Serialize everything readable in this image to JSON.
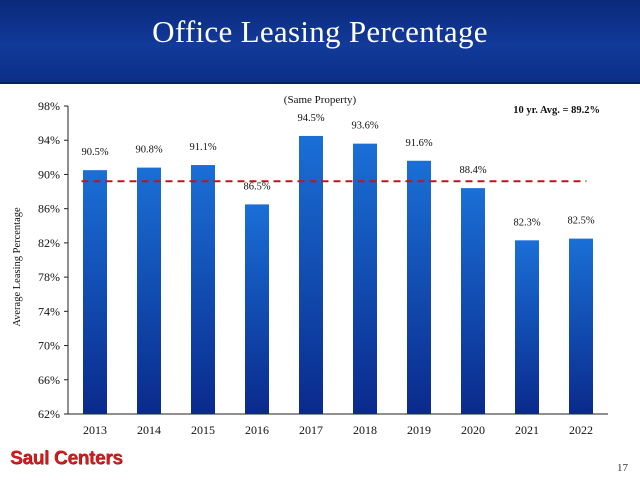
{
  "slide": {
    "title": "Office Leasing Percentage",
    "logo_text": "Saul Centers",
    "page_number": "17"
  },
  "colors": {
    "title_band": "#0b2f86",
    "bar_top": "#1a6fd6",
    "bar_bottom": "#0a2a8c",
    "avg_line": "#c0141c",
    "logo": "#d01c1c"
  },
  "chart_data": {
    "type": "bar",
    "subtitle": "(Same Property)",
    "annotation": "10 yr. Avg. = 89.2%",
    "ylabel": "Average Leasing Percentage",
    "xlabel": "",
    "categories": [
      "2013",
      "2014",
      "2015",
      "2016",
      "2017",
      "2018",
      "2019",
      "2020",
      "2021",
      "2022"
    ],
    "values": [
      90.5,
      90.8,
      91.1,
      86.5,
      94.5,
      93.6,
      91.6,
      88.4,
      82.3,
      82.5
    ],
    "value_labels": [
      "90.5%",
      "90.8%",
      "91.1%",
      "86.5%",
      "94.5%",
      "93.6%",
      "91.6%",
      "88.4%",
      "82.3%",
      "82.5%"
    ],
    "average": 89.2,
    "ylim": [
      62,
      98
    ],
    "yticks": [
      62,
      66,
      70,
      74,
      78,
      82,
      86,
      90,
      94,
      98
    ],
    "ytick_labels": [
      "62%",
      "66%",
      "70%",
      "74%",
      "78%",
      "82%",
      "86%",
      "90%",
      "94%",
      "98%"
    ],
    "grid": false
  }
}
